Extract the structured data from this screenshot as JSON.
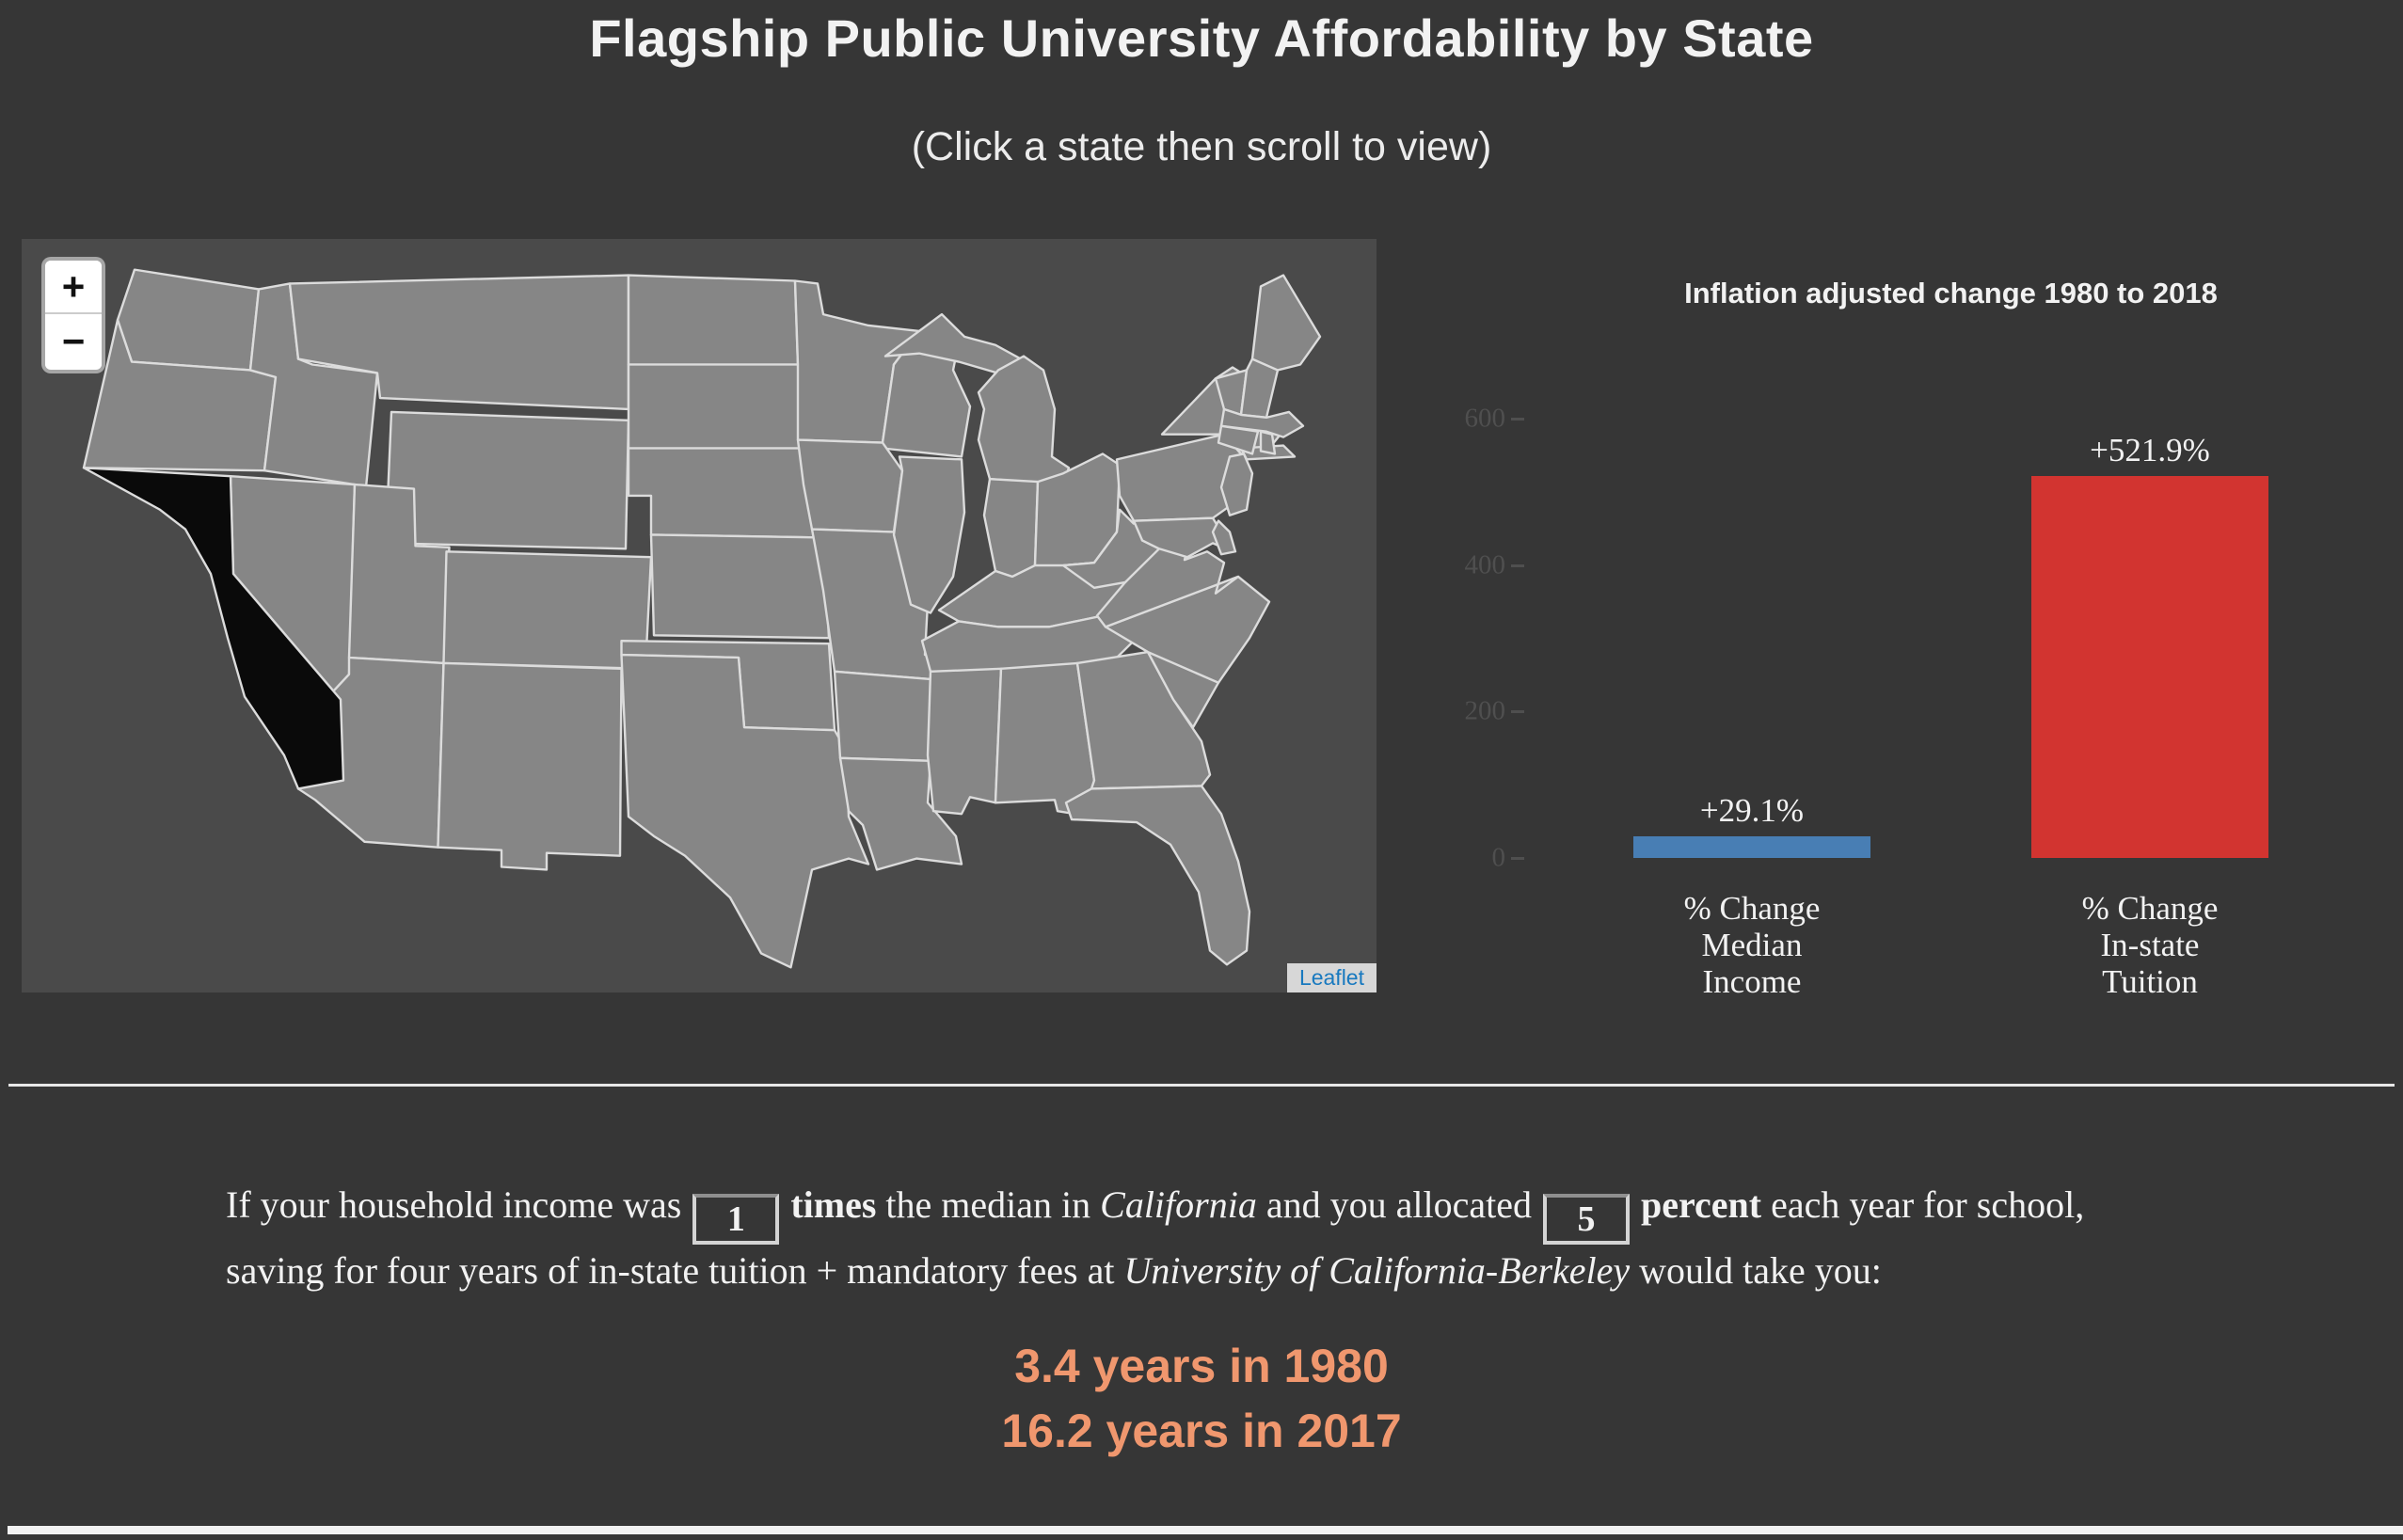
{
  "page": {
    "background": "#363636"
  },
  "header": {
    "title": "Flagship Public University Affordability by State",
    "subtitle": "(Click a state then scroll to view)"
  },
  "map": {
    "selected_state": "California",
    "background": "#4a4a4a",
    "state_fill": "#868686",
    "state_border": "#dcdcdc",
    "selected_fill": "#0a0a0a",
    "zoom_in_label": "+",
    "zoom_out_label": "−",
    "attribution": "Leaflet"
  },
  "chart_data": {
    "type": "bar",
    "title": "Inflation adjusted change 1980 to 2018",
    "categories": [
      "% Change\nMedian\nIncome",
      "% Change\nIn-state\nTuition"
    ],
    "values": [
      29.1,
      521.9
    ],
    "bar_labels": [
      "+29.1%",
      "+521.9%"
    ],
    "bar_colors": [
      "#487eb4",
      "#d23430"
    ],
    "yticks": [
      0,
      200,
      400,
      600
    ],
    "ylim": [
      0,
      650
    ],
    "xlabel": "",
    "ylabel": "",
    "grid": false,
    "legend": "none"
  },
  "calculator": {
    "part1": "If your household income was",
    "income_multiple": "1",
    "bold1": "times",
    "part2": " the median in ",
    "state_italic": "California",
    "part3": " and you allocated",
    "percent_saved": "5",
    "bold2": "percent",
    "part4": " each year for school, saving for four years of in-state tuition + mandatory fees at ",
    "school_italic": "University of California-Berkeley",
    "part5": " would take you:",
    "results": [
      "3.4 years in 1980",
      "16.2 years in 2017"
    ],
    "result_color": "#f0976e"
  }
}
